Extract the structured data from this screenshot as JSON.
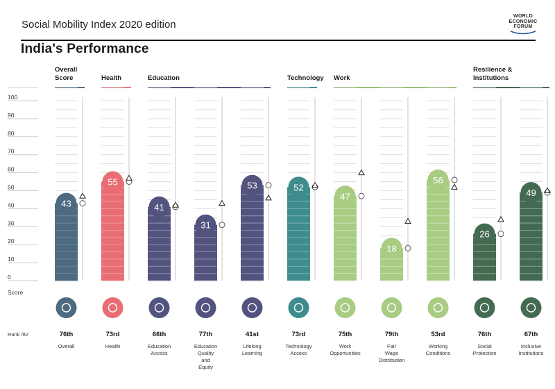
{
  "header": {
    "title": "Social Mobility Index 2020 edition",
    "subtitle": "India's Performance",
    "logo_lines": [
      "WORLD",
      "ECONOMIC",
      "FORUM"
    ]
  },
  "chart_data": {
    "type": "bar",
    "ylim": [
      0,
      100
    ],
    "yticks": [
      0,
      10,
      20,
      30,
      40,
      50,
      60,
      70,
      80,
      90,
      100
    ],
    "ylabel": "Score",
    "rank_label": "Rank /82",
    "groups": [
      {
        "label": [
          "Overall",
          "Score"
        ],
        "color": "#4d6b80",
        "start": 0,
        "end": 0
      },
      {
        "label": [
          "Health"
        ],
        "color": "#e7767c",
        "start": 1,
        "end": 1
      },
      {
        "label": [
          "Education"
        ],
        "color": "#585882",
        "start": 2,
        "end": 4
      },
      {
        "label": [
          "Technology"
        ],
        "color": "#3f8c8e",
        "start": 5,
        "end": 5
      },
      {
        "label": [
          "Work"
        ],
        "color": "#9cc278",
        "start": 6,
        "end": 8
      },
      {
        "label": [
          "Resilience &",
          "Institutions"
        ],
        "color": "#456a52",
        "start": 9,
        "end": 10
      }
    ],
    "pillars": [
      {
        "name": [
          "Overall"
        ],
        "value": 43,
        "rank": "76th",
        "icon": "medal-icon",
        "color": "#4d6b80",
        "light": "#6f889b",
        "marker": "triangle",
        "marker_value": 47
      },
      {
        "name": [
          "Health"
        ],
        "value": 55,
        "rank": "73rd",
        "icon": "health-cross-icon",
        "color": "#e86e74",
        "light": "#f29a9d",
        "marker": "triangle",
        "marker_value": 57
      },
      {
        "name": [
          "Education",
          "Access"
        ],
        "value": 41,
        "rank": "66th",
        "icon": "graduation-cap-icon",
        "color": "#535380",
        "light": "#9393b2",
        "marker": "triangle",
        "marker_value": 42
      },
      {
        "name": [
          "Education",
          "Quality",
          "and",
          "Equity"
        ],
        "value": 31,
        "rank": "77th",
        "icon": "award-ribbon-icon",
        "color": "#535380",
        "light": "#9393b2",
        "marker": "triangle",
        "marker_value": 43
      },
      {
        "name": [
          "Lifelong",
          "Learning"
        ],
        "value": 53,
        "rank": "41st",
        "icon": "learning-head-icon",
        "color": "#535380",
        "light": "#9393b2",
        "marker": "triangle",
        "marker_value": 46
      },
      {
        "name": [
          "Technology",
          "Access"
        ],
        "value": 52,
        "rank": "73rd",
        "icon": "network-icon",
        "color": "#3f8c8e",
        "light": "#7fb3b3",
        "marker": "triangle",
        "marker_value": 53
      },
      {
        "name": [
          "Work",
          "Opportunities"
        ],
        "value": 47,
        "rank": "75th",
        "icon": "wrench-icon",
        "color": "#a8cc82",
        "light": "#cfe3b6",
        "marker": "triangle",
        "marker_value": 60
      },
      {
        "name": [
          "Fair",
          "Wage",
          "Distribution"
        ],
        "value": 18,
        "rank": "79th",
        "icon": "coins-icon",
        "color": "#a8cc82",
        "light": "#cfe3b6",
        "marker": "triangle",
        "marker_value": 33
      },
      {
        "name": [
          "Working",
          "Conditions"
        ],
        "value": 56,
        "rank": "53rd",
        "icon": "document-icon",
        "color": "#a8cc82",
        "light": "#cfe3b6",
        "marker": "triangle",
        "marker_value": 52
      },
      {
        "name": [
          "Social",
          "Protection"
        ],
        "value": 26,
        "rank": "76th",
        "icon": "protection-hands-icon",
        "color": "#456a52",
        "light": "#8aa894",
        "marker": "triangle",
        "marker_value": 34
      },
      {
        "name": [
          "Inclusive",
          "Institutions"
        ],
        "value": 49,
        "rank": "67th",
        "icon": "institution-arrows-icon",
        "color": "#456a52",
        "light": "#8aa894",
        "marker": "triangle",
        "marker_value": 50
      }
    ]
  }
}
